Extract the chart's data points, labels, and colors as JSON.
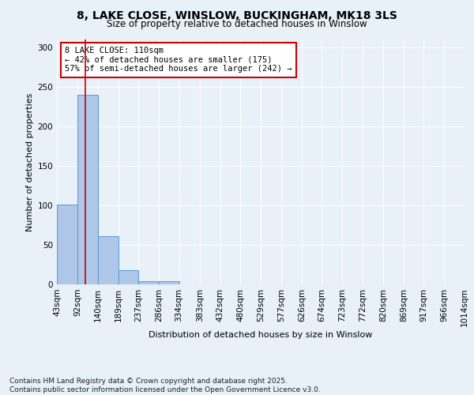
{
  "title_line1": "8, LAKE CLOSE, WINSLOW, BUCKINGHAM, MK18 3LS",
  "title_line2": "Size of property relative to detached houses in Winslow",
  "xlabel": "Distribution of detached houses by size in Winslow",
  "ylabel": "Number of detached properties",
  "footnote": "Contains HM Land Registry data © Crown copyright and database right 2025.\nContains public sector information licensed under the Open Government Licence v3.0.",
  "bin_labels": [
    "43sqm",
    "92sqm",
    "140sqm",
    "189sqm",
    "237sqm",
    "286sqm",
    "334sqm",
    "383sqm",
    "432sqm",
    "480sqm",
    "529sqm",
    "577sqm",
    "626sqm",
    "674sqm",
    "723sqm",
    "772sqm",
    "820sqm",
    "869sqm",
    "917sqm",
    "966sqm",
    "1014sqm"
  ],
  "bar_values": [
    101,
    240,
    61,
    18,
    4,
    4,
    0,
    0,
    0,
    0,
    0,
    0,
    0,
    0,
    0,
    0,
    0,
    0,
    0,
    0
  ],
  "bar_color": "#aec6e8",
  "bar_edge_color": "#5b9bd5",
  "property_line_x": 110,
  "bin_edges": [
    43,
    92,
    140,
    189,
    237,
    286,
    334,
    383,
    432,
    480,
    529,
    577,
    626,
    674,
    723,
    772,
    820,
    869,
    917,
    966,
    1014
  ],
  "annotation_text": "8 LAKE CLOSE: 110sqm\n← 42% of detached houses are smaller (175)\n57% of semi-detached houses are larger (242) →",
  "annotation_box_color": "#ffffff",
  "annotation_box_edge_color": "#cc0000",
  "vline_color": "#cc0000",
  "ylim": [
    0,
    310
  ],
  "yticks": [
    0,
    50,
    100,
    150,
    200,
    250,
    300
  ],
  "background_color": "#e8f0f8",
  "grid_color": "#ffffff",
  "title_fontsize": 10,
  "subtitle_fontsize": 8.5,
  "ylabel_fontsize": 8,
  "xlabel_fontsize": 8,
  "tick_fontsize": 7.5,
  "footnote_fontsize": 6.5
}
